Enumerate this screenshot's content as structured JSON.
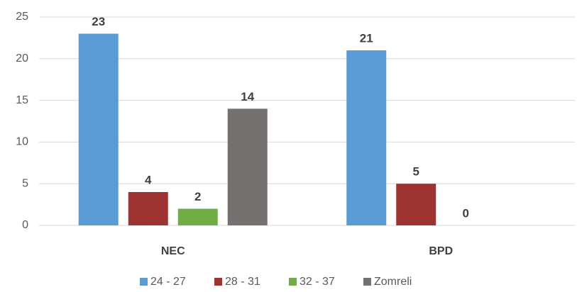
{
  "chart_data": {
    "type": "bar",
    "categories": [
      "NEC",
      "BPD"
    ],
    "series": [
      {
        "name": "24 - 27",
        "color": "#5b9bd5",
        "values": [
          23,
          21
        ]
      },
      {
        "name": "28 - 31",
        "color": "#9e3431",
        "values": [
          4,
          5
        ]
      },
      {
        "name": "32 - 37",
        "color": "#70ad47",
        "values": [
          2,
          0
        ]
      },
      {
        "name": "Zomreli",
        "color": "#767171",
        "values": [
          14,
          null
        ]
      }
    ],
    "ylim": [
      0,
      25
    ],
    "yticks": [
      0,
      5,
      10,
      15,
      20,
      25
    ],
    "grid": true,
    "legend": "bottom"
  }
}
